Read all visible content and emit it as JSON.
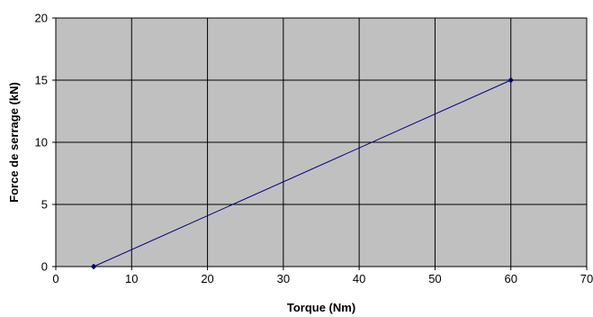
{
  "chart_data": {
    "type": "line",
    "title": "",
    "xlabel": "Torque (Nm)",
    "ylabel": "Force de serrage (kN)",
    "xlim": [
      0,
      70
    ],
    "ylim": [
      0,
      20
    ],
    "xticks": [
      0,
      10,
      20,
      30,
      40,
      50,
      60,
      70
    ],
    "yticks": [
      0,
      5,
      10,
      15,
      20
    ],
    "grid": true,
    "legend": "none",
    "plot_background": "#c0c0c0",
    "grid_color": "#000000",
    "series": [
      {
        "color": "#000080",
        "marker": "diamond",
        "points": [
          {
            "x": 5,
            "y": 0
          },
          {
            "x": 60,
            "y": 15
          }
        ]
      }
    ]
  }
}
